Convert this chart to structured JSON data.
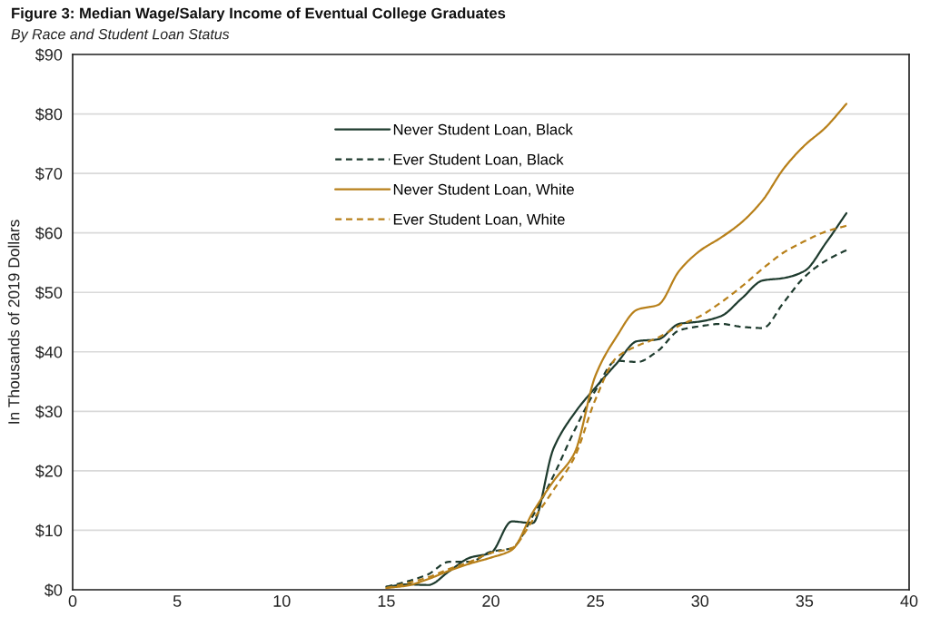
{
  "chart_data": {
    "type": "line",
    "title": "Figure 3: Median Wage/Salary Income of Eventual College Graduates",
    "subtitle": "By Race and Student Loan Status",
    "ylabel": "In Thousands of 2019 Dollars",
    "x": [
      15,
      16,
      17,
      18,
      19,
      20,
      21,
      22,
      23,
      24,
      25,
      26,
      27,
      28,
      29,
      30,
      31,
      32,
      33,
      34,
      35,
      36,
      37
    ],
    "series": [
      {
        "name": "Never Student Loan, Black",
        "color": "#1e3b2e",
        "line_style": "solid",
        "values": [
          0.5,
          0.9,
          0.8,
          3.1,
          5.4,
          6.2,
          11.5,
          11.2,
          23.8,
          29.7,
          34,
          38,
          41.8,
          42.1,
          44.7,
          45.1,
          46,
          49,
          52,
          52.4,
          53.6,
          58.2,
          63.3
        ]
      },
      {
        "name": "Ever Student Loan, Black",
        "color": "#1e3b2e",
        "line_style": "dashed",
        "values": [
          0.5,
          1.4,
          2.6,
          4.7,
          4.7,
          6.4,
          7,
          12.4,
          19.2,
          26.8,
          33.5,
          38.5,
          38.3,
          40.2,
          43.6,
          44.3,
          44.7,
          44.2,
          44,
          48.3,
          52.6,
          55.3,
          57.1
        ]
      },
      {
        "name": "Never Student Loan, White",
        "color": "#b8801a",
        "line_style": "solid",
        "values": [
          0.3,
          0.7,
          1.8,
          3.2,
          4.4,
          5.4,
          6.7,
          13,
          18.3,
          23,
          36,
          42.5,
          47.1,
          47.9,
          53.6,
          57,
          59.2,
          61.8,
          65.5,
          70.8,
          74.7,
          77.7,
          81.7
        ]
      },
      {
        "name": "Ever Student Loan, White",
        "color": "#b8801a",
        "line_style": "dashed",
        "values": [
          0.3,
          1.1,
          2.1,
          3.5,
          4.7,
          6.2,
          7,
          11.7,
          16.8,
          22.3,
          32,
          39,
          41,
          42.4,
          44.4,
          46,
          48.3,
          51,
          54,
          56.7,
          58.6,
          60.2,
          61.2
        ]
      }
    ],
    "xlim": [
      0,
      40
    ],
    "xticks": [
      0,
      5,
      10,
      15,
      20,
      25,
      30,
      35,
      40
    ],
    "ylim": [
      0,
      90
    ],
    "yticks": [
      {
        "value": 0,
        "label": "$0"
      },
      {
        "value": 10,
        "label": "$10"
      },
      {
        "value": 20,
        "label": "$20"
      },
      {
        "value": 30,
        "label": "$30"
      },
      {
        "value": 40,
        "label": "$40"
      },
      {
        "value": 50,
        "label": "$50"
      },
      {
        "value": 60,
        "label": "$60"
      },
      {
        "value": 70,
        "label": "$70"
      },
      {
        "value": 80,
        "label": "$80"
      },
      {
        "value": 90,
        "label": "$90"
      }
    ],
    "grid": "y",
    "legend": "top",
    "marker": "none"
  }
}
